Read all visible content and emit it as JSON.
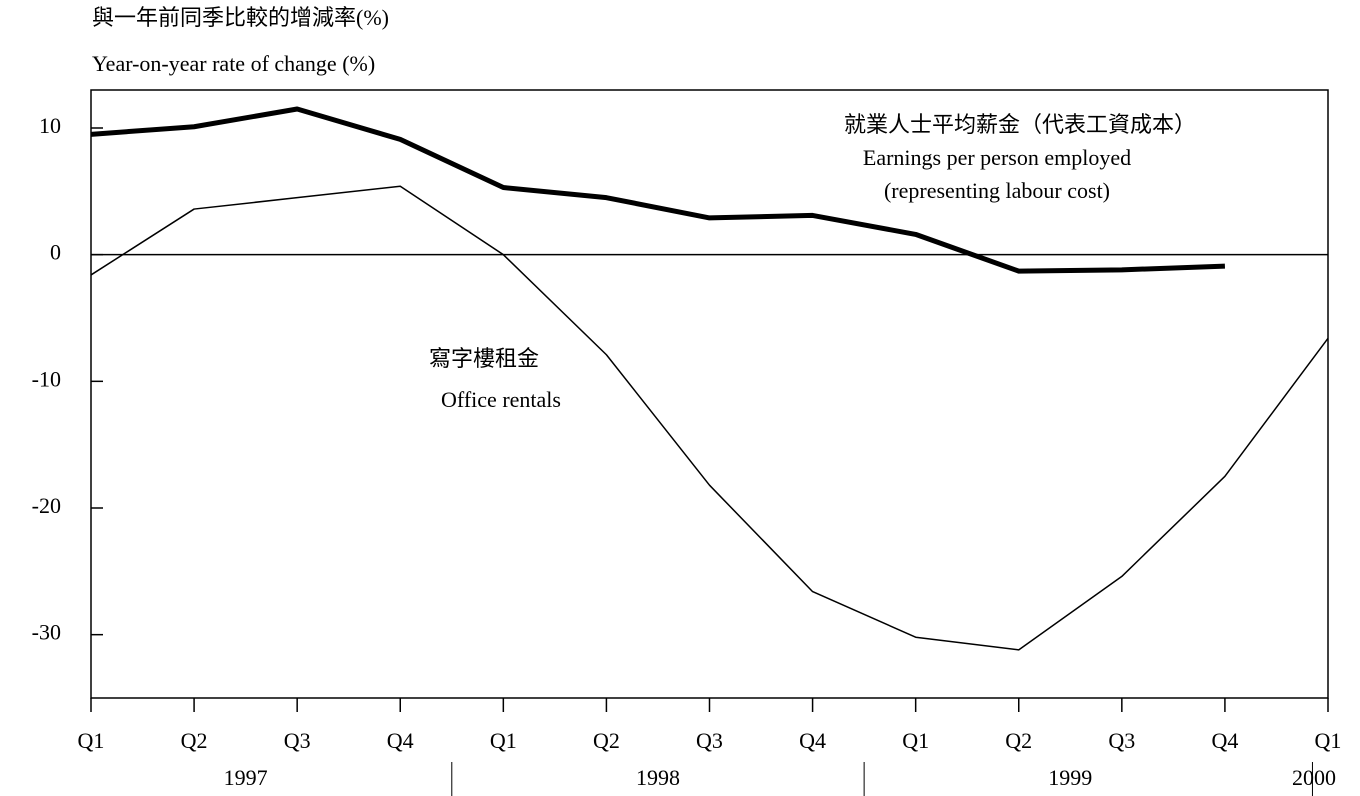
{
  "chart_data": {
    "type": "line",
    "title": "與一年前同季比較的增減率(%)",
    "subtitle": "Year-on-year rate of change (%)",
    "categories": [
      "Q1",
      "Q2",
      "Q3",
      "Q4",
      "Q1",
      "Q2",
      "Q3",
      "Q4",
      "Q1",
      "Q2",
      "Q3",
      "Q4",
      "Q1"
    ],
    "years": [
      "1997",
      "1998",
      "1999",
      "2000"
    ],
    "series": [
      {
        "name": "Earnings per person employed",
        "name_note": "(representing labour cost)",
        "name_zh": "就業人士平均薪金（代表工資成本）",
        "color": "#000000",
        "values": [
          9.5,
          10.1,
          11.5,
          9.1,
          5.3,
          4.5,
          2.9,
          3.1,
          1.6,
          -1.3,
          -1.2,
          -0.9,
          null
        ]
      },
      {
        "name": "Office rentals",
        "name_zh": "寫字樓租金",
        "color": "#000000",
        "values": [
          -1.6,
          3.6,
          4.5,
          5.4,
          0,
          -7.9,
          -18.2,
          -26.6,
          -30.2,
          -31.2,
          -25.4,
          -17.5,
          -6.6
        ]
      }
    ],
    "ylim": [
      -35,
      13
    ],
    "yticks": [
      10,
      0,
      -10,
      -20,
      -30
    ]
  }
}
